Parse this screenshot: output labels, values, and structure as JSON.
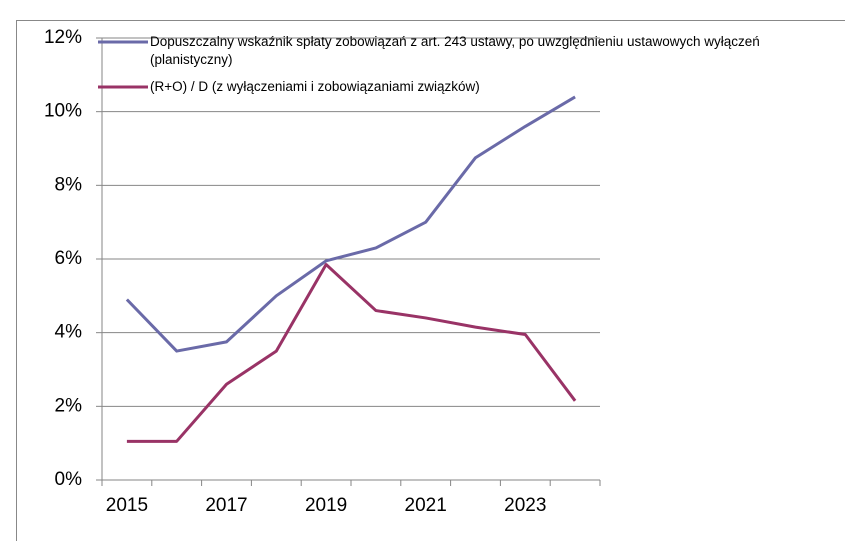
{
  "chart_data": {
    "type": "line",
    "categories": [
      "2015",
      null,
      "2017",
      null,
      "2019",
      null,
      "2021",
      null,
      "2023",
      null
    ],
    "series": [
      {
        "name": "Dopuszczalny wskaźnik spłaty zobowiązań z art. 243 ustawy, po uwzględnieniu ustawowych wyłączeń (planistyczny)",
        "color": "#6a6aa8",
        "values": [
          4.9,
          3.5,
          3.75,
          5.0,
          5.95,
          6.3,
          7.0,
          8.75,
          9.6,
          10.4
        ]
      },
      {
        "name": "(R+O) / D (z wyłączeniami i zobowiązaniami związków)",
        "color": "#993366",
        "values": [
          1.05,
          1.05,
          2.6,
          3.5,
          5.85,
          4.6,
          4.4,
          4.15,
          3.95,
          2.15
        ]
      }
    ],
    "ylim": [
      0,
      12
    ],
    "yticks": [
      {
        "value": 0,
        "label": "0%"
      },
      {
        "value": 2,
        "label": "2%"
      },
      {
        "value": 4,
        "label": "4%"
      },
      {
        "value": 6,
        "label": "6%"
      },
      {
        "value": 8,
        "label": "8%"
      },
      {
        "value": 10,
        "label": "10%"
      },
      {
        "value": 12,
        "label": "12%"
      }
    ],
    "grid": true,
    "legend": "top"
  }
}
